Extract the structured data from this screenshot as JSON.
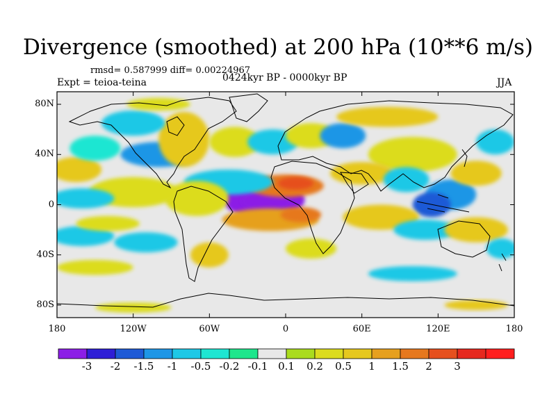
{
  "title": "Divergence (smoothed) at 200 hPa (10**6 m/s)",
  "stats_line": "rmsd= 0.587999 diff= 0.00224967",
  "experiment": "Expt = teioa-teina",
  "period": "0424kyr BP - 0000kyr BP",
  "season": "JJA",
  "map": {
    "lon_range": [
      -180,
      180
    ],
    "lat_range": [
      -90,
      90
    ],
    "lat_ticks": [
      {
        "value": 80,
        "label": "80N"
      },
      {
        "value": 40,
        "label": "40N"
      },
      {
        "value": 0,
        "label": "0"
      },
      {
        "value": -40,
        "label": "40S"
      },
      {
        "value": -80,
        "label": "80S"
      }
    ],
    "lon_ticks": [
      {
        "value": -180,
        "label": "180"
      },
      {
        "value": -120,
        "label": "120W"
      },
      {
        "value": -60,
        "label": "60W"
      },
      {
        "value": 0,
        "label": "0"
      },
      {
        "value": 60,
        "label": "60E"
      },
      {
        "value": 120,
        "label": "120E"
      },
      {
        "value": 180,
        "label": "180"
      }
    ],
    "background_color": "#e8e8e8",
    "blobs": [
      {
        "lon": -17,
        "lat": 4,
        "rlon": 32,
        "rlat": 15,
        "level": -3
      },
      {
        "lon": -15,
        "lat": 3,
        "rlon": 20,
        "rlat": 9,
        "level": -3.5
      },
      {
        "lon": 0,
        "lat": 15,
        "rlon": 30,
        "rlat": 9,
        "level": 2
      },
      {
        "lon": 8,
        "lat": 17,
        "rlon": 14,
        "rlat": 5,
        "level": 3
      },
      {
        "lon": -12,
        "lat": -12,
        "rlon": 38,
        "rlat": 9,
        "level": 1.5
      },
      {
        "lon": 12,
        "lat": -8,
        "rlon": 16,
        "rlat": 6,
        "level": 2
      },
      {
        "lon": -45,
        "lat": 18,
        "rlon": 35,
        "rlat": 10,
        "level": -0.5
      },
      {
        "lon": -70,
        "lat": 5,
        "rlon": 25,
        "rlat": 14,
        "level": 0.5
      },
      {
        "lon": -120,
        "lat": 10,
        "rlon": 35,
        "rlat": 12,
        "level": 0.5
      },
      {
        "lon": -160,
        "lat": 5,
        "rlon": 25,
        "rlat": 8,
        "level": -0.5
      },
      {
        "lon": -165,
        "lat": 28,
        "rlon": 20,
        "rlat": 10,
        "level": 1
      },
      {
        "lon": -100,
        "lat": 40,
        "rlon": 30,
        "rlat": 10,
        "level": -1
      },
      {
        "lon": -80,
        "lat": 52,
        "rlon": 20,
        "rlat": 22,
        "level": 1
      },
      {
        "lon": -120,
        "lat": 65,
        "rlon": 25,
        "rlat": 10,
        "level": -0.5
      },
      {
        "lon": -150,
        "lat": 45,
        "rlon": 20,
        "rlat": 10,
        "level": -0.2
      },
      {
        "lon": -40,
        "lat": 50,
        "rlon": 20,
        "rlat": 12,
        "level": 0.5
      },
      {
        "lon": -10,
        "lat": 50,
        "rlon": 20,
        "rlat": 10,
        "level": -0.5
      },
      {
        "lon": 20,
        "lat": 55,
        "rlon": 20,
        "rlat": 10,
        "level": 0.5
      },
      {
        "lon": 45,
        "lat": 55,
        "rlon": 18,
        "rlat": 10,
        "level": -1
      },
      {
        "lon": 80,
        "lat": 70,
        "rlon": 40,
        "rlat": 8,
        "level": 1
      },
      {
        "lon": 100,
        "lat": 40,
        "rlon": 35,
        "rlat": 14,
        "level": 0.5
      },
      {
        "lon": 60,
        "lat": 25,
        "rlon": 25,
        "rlat": 9,
        "level": 1
      },
      {
        "lon": 95,
        "lat": 20,
        "rlon": 18,
        "rlat": 10,
        "level": -0.5
      },
      {
        "lon": 130,
        "lat": 8,
        "rlon": 20,
        "rlat": 12,
        "level": -1
      },
      {
        "lon": 115,
        "lat": 0,
        "rlon": 15,
        "rlat": 10,
        "level": -1.5
      },
      {
        "lon": 150,
        "lat": 25,
        "rlon": 20,
        "rlat": 10,
        "level": 1
      },
      {
        "lon": 165,
        "lat": 50,
        "rlon": 15,
        "rlat": 10,
        "level": -0.5
      },
      {
        "lon": 75,
        "lat": -10,
        "rlon": 30,
        "rlat": 10,
        "level": 1
      },
      {
        "lon": 110,
        "lat": -20,
        "rlon": 25,
        "rlat": 8,
        "level": -0.5
      },
      {
        "lon": 150,
        "lat": -20,
        "rlon": 25,
        "rlat": 10,
        "level": 1
      },
      {
        "lon": 170,
        "lat": -35,
        "rlon": 12,
        "rlat": 8,
        "level": -0.5
      },
      {
        "lon": -160,
        "lat": -25,
        "rlon": 25,
        "rlat": 8,
        "level": -0.5
      },
      {
        "lon": -110,
        "lat": -30,
        "rlon": 25,
        "rlat": 8,
        "level": -0.5
      },
      {
        "lon": -140,
        "lat": -15,
        "rlon": 25,
        "rlat": 6,
        "level": 0.5
      },
      {
        "lon": -60,
        "lat": -40,
        "rlon": 15,
        "rlat": 10,
        "level": 1
      },
      {
        "lon": 20,
        "lat": -35,
        "rlon": 20,
        "rlat": 8,
        "level": 0.5
      },
      {
        "lon": -150,
        "lat": -50,
        "rlon": 30,
        "rlat": 6,
        "level": 0.5
      },
      {
        "lon": 100,
        "lat": -55,
        "rlon": 35,
        "rlat": 6,
        "level": -0.5
      },
      {
        "lon": -120,
        "lat": -82,
        "rlon": 30,
        "rlat": 4,
        "level": 0.5
      },
      {
        "lon": 150,
        "lat": -80,
        "rlon": 25,
        "rlat": 4,
        "level": 1
      },
      {
        "lon": -100,
        "lat": 80,
        "rlon": 25,
        "rlat": 5,
        "level": 0.5
      }
    ]
  },
  "colorbar": {
    "colors": [
      "#8c1ee6",
      "#2e1ed6",
      "#1e5ad6",
      "#1e96e6",
      "#1ec8e6",
      "#1ee6d2",
      "#1ee68c",
      "#e8e8e8",
      "#aadc1e",
      "#dcdc1e",
      "#e6c81e",
      "#e6a01e",
      "#e6781e",
      "#e6501e",
      "#e6281e",
      "#ff1e1e"
    ],
    "labels": [
      "-3",
      "-2",
      "-1.5",
      "-1",
      "-0.5",
      "-0.2",
      "-0.1",
      "0.1",
      "0.2",
      "0.5",
      "1",
      "1.5",
      "2",
      "3"
    ]
  }
}
